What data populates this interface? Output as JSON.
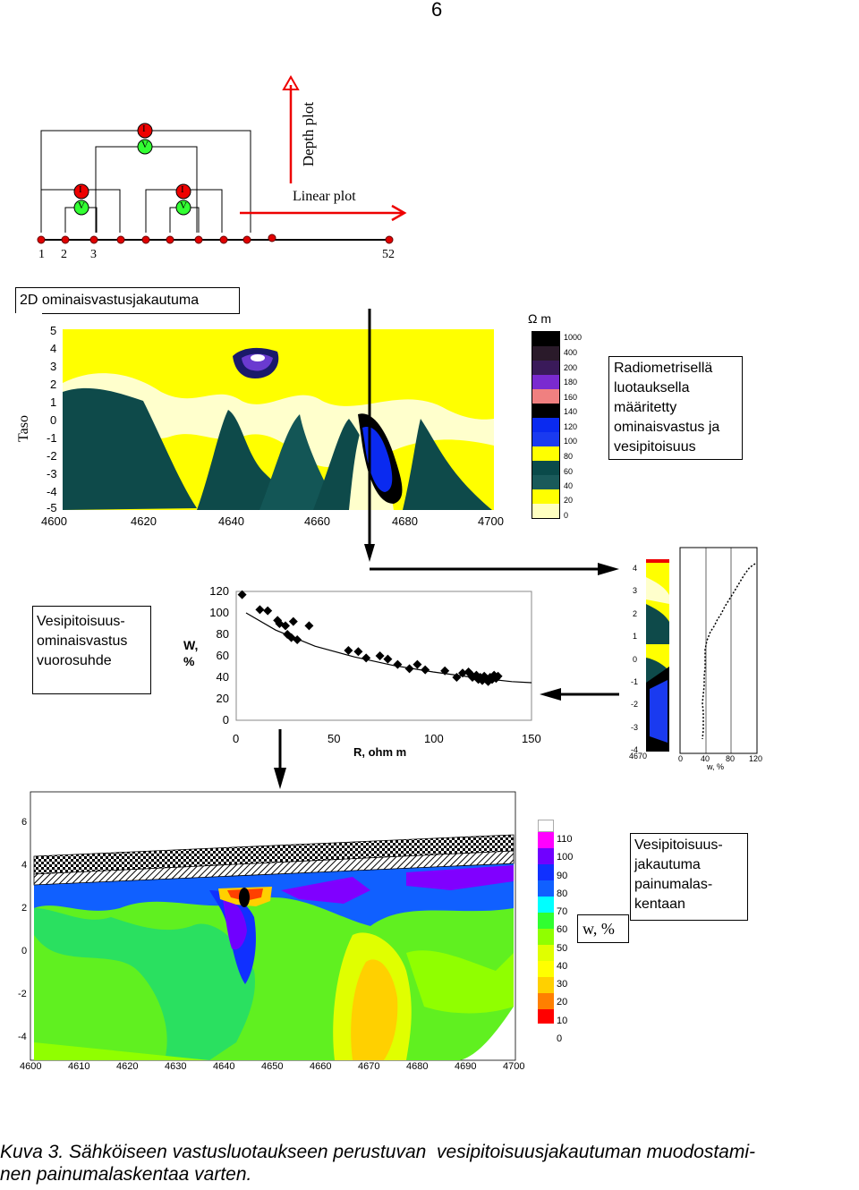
{
  "page_number": "6",
  "schematic": {
    "current_label": "I",
    "voltage_label": "V",
    "electrode_labels": [
      "1",
      "2",
      "3",
      "52"
    ],
    "depth_plot": "Depth plot",
    "linear_plot": "Linear plot"
  },
  "panel1": {
    "title": "2D ominaisvastusjakautuma",
    "y_axis_label": "Taso",
    "y_ticks": [
      "5",
      "4",
      "3",
      "2",
      "1",
      "0",
      "-1",
      "-2",
      "-3",
      "-4",
      "-5"
    ],
    "x_ticks": [
      "4600",
      "4620",
      "4640",
      "4660",
      "4680",
      "4700"
    ],
    "legend_unit": "Ω m",
    "legend_values": [
      "1000",
      "400",
      "200",
      "180",
      "160",
      "140",
      "120",
      "100",
      "80",
      "60",
      "40",
      "20",
      "0"
    ],
    "legend_colors": [
      "#000000",
      "#2a1a2a",
      "#3a1a5a",
      "#7a2ad0",
      "#f08080",
      "#000000",
      "#0a2af0",
      "#1a3af0",
      "#ffff00",
      "#ffff00",
      "#0a4a4a",
      "#1a5a5a",
      "#ffffc0"
    ],
    "note": "Radiometrisellä luotauksella määritetty ominaisvastus ja vesipitoisuus"
  },
  "panel2": {
    "box_label": "Vesipitoisuus-ominaisvastus vuorosuhde",
    "y_label": "W, %",
    "x_label": "R, ohm m",
    "y_ticks": [
      "120",
      "100",
      "80",
      "60",
      "40",
      "20",
      "0"
    ],
    "x_ticks": [
      "0",
      "50",
      "100",
      "150"
    ],
    "log_y_ticks": [
      "4",
      "3",
      "2",
      "1",
      "0",
      "-1",
      "-2",
      "-3",
      "-4"
    ],
    "log_x_tick": "4670",
    "profile_x_ticks": [
      "0",
      "40",
      "80",
      "120"
    ],
    "profile_x_label": "w, %"
  },
  "panel3": {
    "y_ticks": [
      "6",
      "4",
      "2",
      "0",
      "-2",
      "-4"
    ],
    "x_ticks": [
      "4600",
      "4610",
      "4620",
      "4630",
      "4640",
      "4650",
      "4660",
      "4670",
      "4680",
      "4690",
      "4700"
    ],
    "legend_values": [
      "110",
      "100",
      "90",
      "80",
      "70",
      "60",
      "50",
      "40",
      "30",
      "20",
      "10",
      "0"
    ],
    "legend_colors": [
      "#ffffff",
      "#ff00ff",
      "#7000ff",
      "#1030ff",
      "#1060ff",
      "#00ffff",
      "#30ff30",
      "#90ff00",
      "#e0ff00",
      "#ffff00",
      "#ffd000",
      "#ff8000",
      "#ff0000"
    ],
    "legend_unit": "w, %",
    "note": "Vesipitoisuus-jakautuma painumalas-kentaan"
  },
  "chart_data": {
    "type": "scatter",
    "x": [
      3,
      12,
      16,
      21,
      22,
      25,
      26,
      28,
      29,
      31,
      37,
      57,
      62,
      66,
      73,
      77,
      82,
      88,
      92,
      96,
      106,
      112,
      115,
      118,
      119,
      120,
      122,
      123,
      124,
      125,
      126,
      127,
      128,
      129,
      130,
      131,
      132,
      133
    ],
    "y": [
      117,
      103,
      102,
      93,
      90,
      88,
      80,
      77,
      92,
      75,
      88,
      65,
      64,
      58,
      60,
      57,
      52,
      48,
      52,
      47,
      46,
      40,
      44,
      45,
      43,
      40,
      42,
      38,
      40,
      37,
      41,
      38,
      36,
      40,
      38,
      42,
      39,
      41
    ],
    "fit_x": [
      5,
      20,
      40,
      60,
      80,
      100,
      120,
      140,
      150
    ],
    "fit_y": [
      100,
      84,
      69,
      59,
      51,
      45,
      40,
      36,
      35
    ],
    "xlim": [
      0,
      150
    ],
    "ylim": [
      0,
      120
    ],
    "xlabel": "R, ohm m",
    "ylabel": "W, %"
  },
  "caption": {
    "line1": "Kuva 3. Sähköiseen vastusluotaukseen perustuvan  vesipitoisuusjakautuman muodostami-",
    "line2": "nen painumalaskentaa varten."
  }
}
